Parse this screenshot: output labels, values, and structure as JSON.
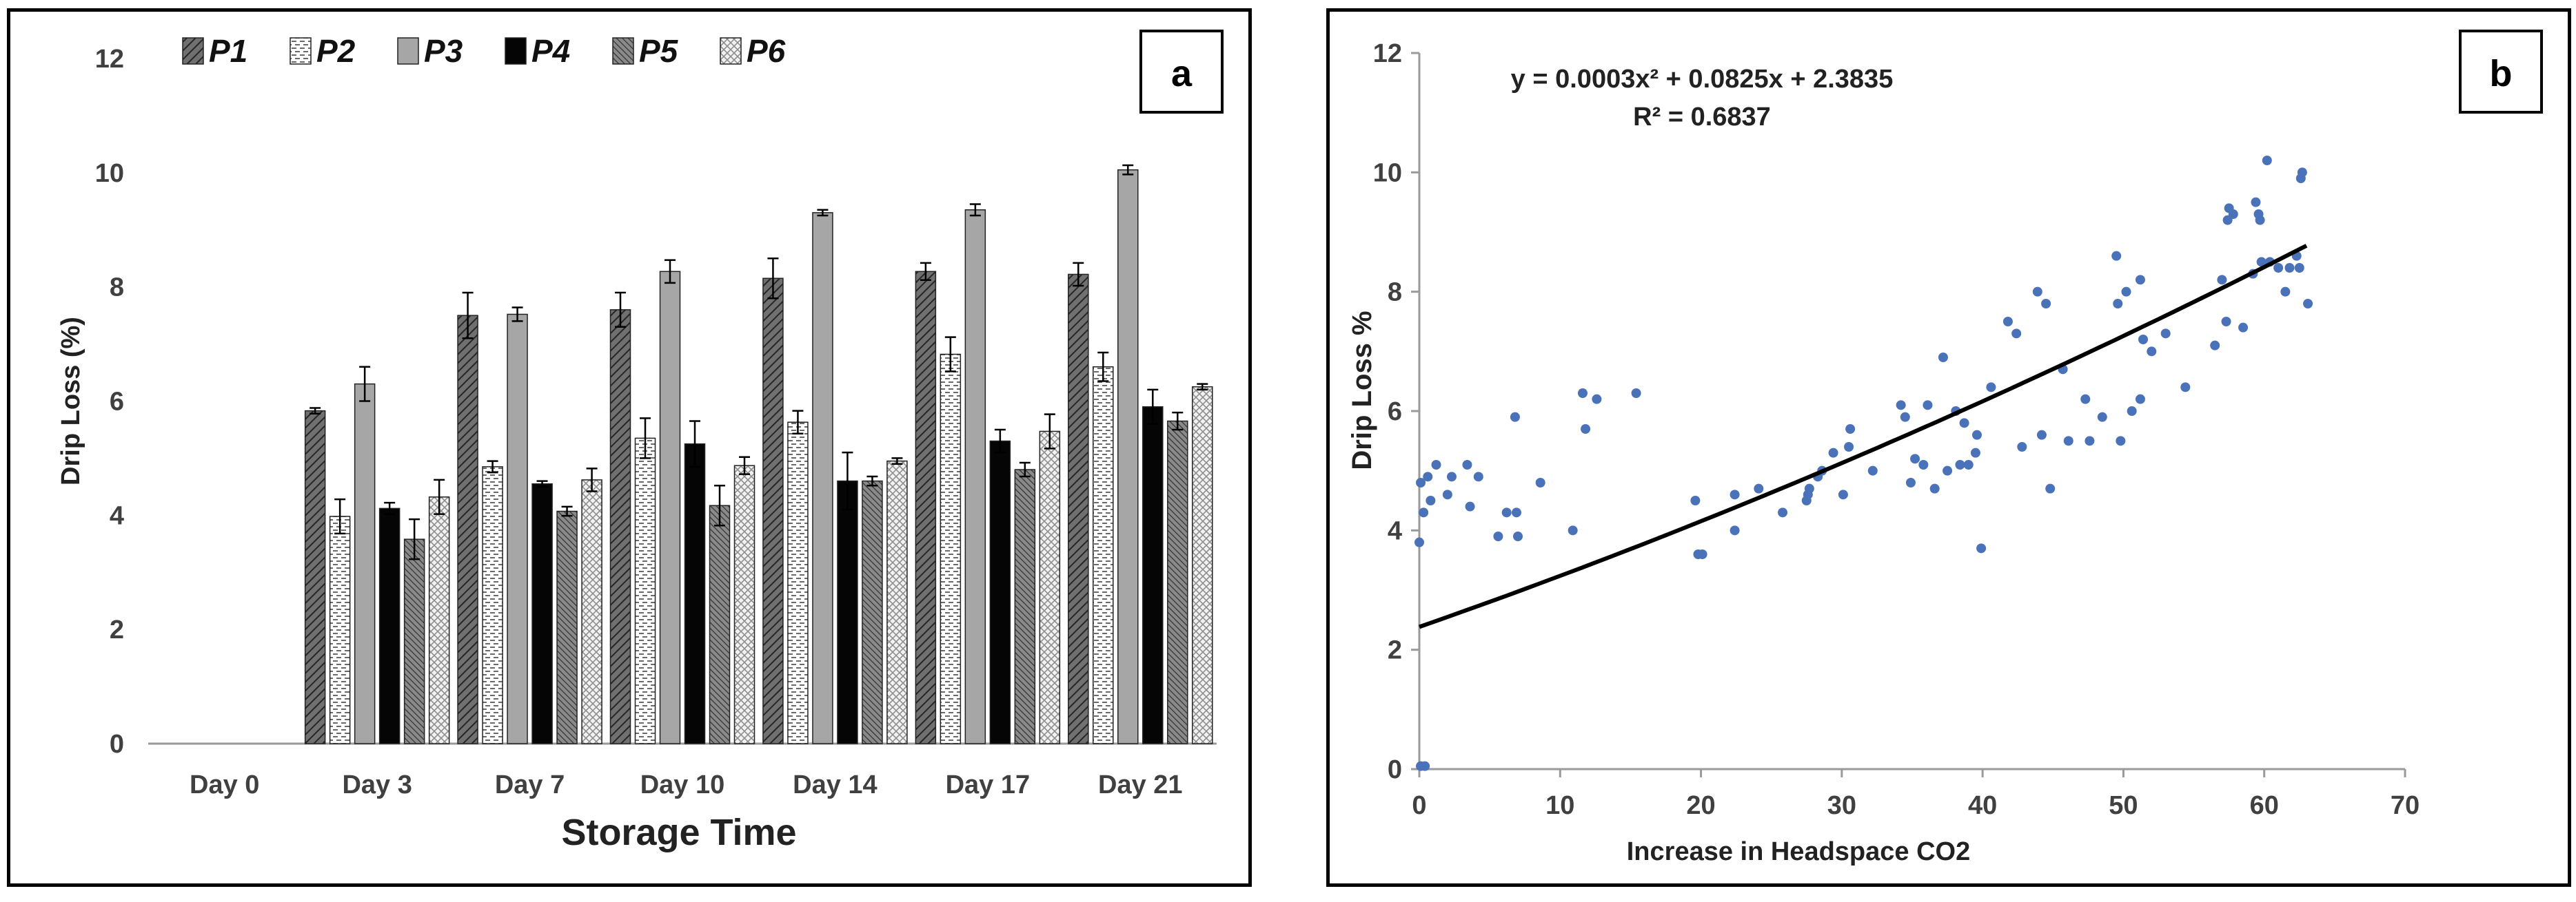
{
  "chart_data": [
    {
      "panel_label": "a",
      "type": "bar",
      "title": "",
      "xlabel": "Storage Time",
      "ylabel": "Drip Loss (%)",
      "ylim": [
        0,
        12
      ],
      "yticks": [
        "0",
        "2",
        "4",
        "6",
        "8",
        "10",
        "12"
      ],
      "categories": [
        "Day 0",
        "Day 3",
        "Day 7",
        "Day 10",
        "Day 14",
        "Day 17",
        "Day 21"
      ],
      "legend_position": "top-left",
      "series": [
        {
          "name": "P1",
          "pattern": "hatch-dark",
          "values": [
            0,
            5.83,
            7.5,
            7.6,
            8.15,
            8.27,
            8.22
          ],
          "errors": [
            0,
            0.05,
            0.4,
            0.3,
            0.35,
            0.15,
            0.2
          ]
        },
        {
          "name": "P2",
          "pattern": "dash-light",
          "values": [
            0,
            3.98,
            4.85,
            5.35,
            5.63,
            6.82,
            6.6
          ],
          "errors": [
            0,
            0.3,
            0.1,
            0.35,
            0.2,
            0.3,
            0.25
          ]
        },
        {
          "name": "P3",
          "pattern": "solid-gray",
          "values": [
            0,
            6.3,
            7.52,
            8.27,
            9.3,
            9.35,
            10.05
          ],
          "errors": [
            0,
            0.3,
            0.12,
            0.2,
            0.05,
            0.1,
            0.08
          ]
        },
        {
          "name": "P4",
          "pattern": "solid-black",
          "values": [
            0,
            4.12,
            4.55,
            5.25,
            4.6,
            5.3,
            5.9
          ],
          "errors": [
            0,
            0.1,
            0.05,
            0.4,
            0.5,
            0.2,
            0.3
          ]
        },
        {
          "name": "P5",
          "pattern": "hatch-fine",
          "values": [
            0,
            3.58,
            4.07,
            4.17,
            4.6,
            4.8,
            5.65
          ],
          "errors": [
            0,
            0.35,
            0.08,
            0.35,
            0.08,
            0.12,
            0.15
          ]
        },
        {
          "name": "P6",
          "pattern": "check-light",
          "values": [
            0,
            4.32,
            4.62,
            4.87,
            4.95,
            5.47,
            6.25
          ],
          "errors": [
            0,
            0.3,
            0.2,
            0.15,
            0.05,
            0.3,
            0.05
          ]
        }
      ]
    },
    {
      "panel_label": "b",
      "type": "scatter",
      "title": "",
      "xlabel": "Increase in Headspace CO2",
      "ylabel": "Drip Loss %",
      "xlim": [
        0,
        70
      ],
      "ylim": [
        0,
        12
      ],
      "xticks": [
        "0",
        "10",
        "20",
        "30",
        "40",
        "50",
        "60",
        "70"
      ],
      "yticks": [
        "0",
        "2",
        "4",
        "6",
        "8",
        "10",
        "12"
      ],
      "point_color": "#4a72b8",
      "equation": "y = 0.0003x² + 0.0825x + 2.3835",
      "r_squared": "R² = 0.6837",
      "trendline": {
        "a": 0.0003,
        "b": 0.0825,
        "c": 2.3835,
        "x_start": 0,
        "x_end": 63
      },
      "points": [
        [
          0.1,
          0.05
        ],
        [
          0.4,
          0.05
        ],
        [
          0,
          3.8
        ],
        [
          0.3,
          4.3
        ],
        [
          0.1,
          4.8
        ],
        [
          0.6,
          4.9
        ],
        [
          1.2,
          5.1
        ],
        [
          0.8,
          4.5
        ],
        [
          2.3,
          4.9
        ],
        [
          2.0,
          4.6
        ],
        [
          3.4,
          5.1
        ],
        [
          3.6,
          4.4
        ],
        [
          4.2,
          4.9
        ],
        [
          5.6,
          3.9
        ],
        [
          6.2,
          4.3
        ],
        [
          6.9,
          4.3
        ],
        [
          6.8,
          5.9
        ],
        [
          7.0,
          3.9
        ],
        [
          8.6,
          4.8
        ],
        [
          10.9,
          4.0
        ],
        [
          11.6,
          6.3
        ],
        [
          11.8,
          5.7
        ],
        [
          12.6,
          6.2
        ],
        [
          15.4,
          6.3
        ],
        [
          19.6,
          4.5
        ],
        [
          19.8,
          3.6
        ],
        [
          20.1,
          3.6
        ],
        [
          22.4,
          4.0
        ],
        [
          22.4,
          4.6
        ],
        [
          24.1,
          4.7
        ],
        [
          25.8,
          4.3
        ],
        [
          27.5,
          4.5
        ],
        [
          27.6,
          4.6
        ],
        [
          27.7,
          4.7
        ],
        [
          28.3,
          4.9
        ],
        [
          28.6,
          5.0
        ],
        [
          29.4,
          5.3
        ],
        [
          30.1,
          4.6
        ],
        [
          30.5,
          5.4
        ],
        [
          30.6,
          5.7
        ],
        [
          32.2,
          5.0
        ],
        [
          34.2,
          6.1
        ],
        [
          34.5,
          5.9
        ],
        [
          34.9,
          4.8
        ],
        [
          35.2,
          5.2
        ],
        [
          35.8,
          5.1
        ],
        [
          36.1,
          6.1
        ],
        [
          36.6,
          4.7
        ],
        [
          37.2,
          6.9
        ],
        [
          37.5,
          5.0
        ],
        [
          38.1,
          6.0
        ],
        [
          38.4,
          5.1
        ],
        [
          38.7,
          5.8
        ],
        [
          39.0,
          5.1
        ],
        [
          39.5,
          5.3
        ],
        [
          39.6,
          5.6
        ],
        [
          39.9,
          3.7
        ],
        [
          40.6,
          6.4
        ],
        [
          41.8,
          7.5
        ],
        [
          42.4,
          7.3
        ],
        [
          42.8,
          5.4
        ],
        [
          43.9,
          8.0
        ],
        [
          44.2,
          5.6
        ],
        [
          44.5,
          7.8
        ],
        [
          44.8,
          4.7
        ],
        [
          45.7,
          6.7
        ],
        [
          46.1,
          5.5
        ],
        [
          47.3,
          6.2
        ],
        [
          47.6,
          5.5
        ],
        [
          48.5,
          5.9
        ],
        [
          49.5,
          8.6
        ],
        [
          49.6,
          7.8
        ],
        [
          49.8,
          5.5
        ],
        [
          50.2,
          8.0
        ],
        [
          50.6,
          6.0
        ],
        [
          51.2,
          8.2
        ],
        [
          51.2,
          6.2
        ],
        [
          51.4,
          7.2
        ],
        [
          52.0,
          7.0
        ],
        [
          53.0,
          7.3
        ],
        [
          54.4,
          6.4
        ],
        [
          56.5,
          7.1
        ],
        [
          57.0,
          8.2
        ],
        [
          57.3,
          7.5
        ],
        [
          57.4,
          9.2
        ],
        [
          57.5,
          9.4
        ],
        [
          57.8,
          9.3
        ],
        [
          58.5,
          7.4
        ],
        [
          59.2,
          8.3
        ],
        [
          59.4,
          9.5
        ],
        [
          59.6,
          9.3
        ],
        [
          59.7,
          9.2
        ],
        [
          59.8,
          8.5
        ],
        [
          60.2,
          10.2
        ],
        [
          60.4,
          8.5
        ],
        [
          61.0,
          8.4
        ],
        [
          61.5,
          8.0
        ],
        [
          61.8,
          8.4
        ],
        [
          62.3,
          8.6
        ],
        [
          62.5,
          8.4
        ],
        [
          62.6,
          9.9
        ],
        [
          62.7,
          10.0
        ],
        [
          63.1,
          7.8
        ]
      ]
    }
  ]
}
